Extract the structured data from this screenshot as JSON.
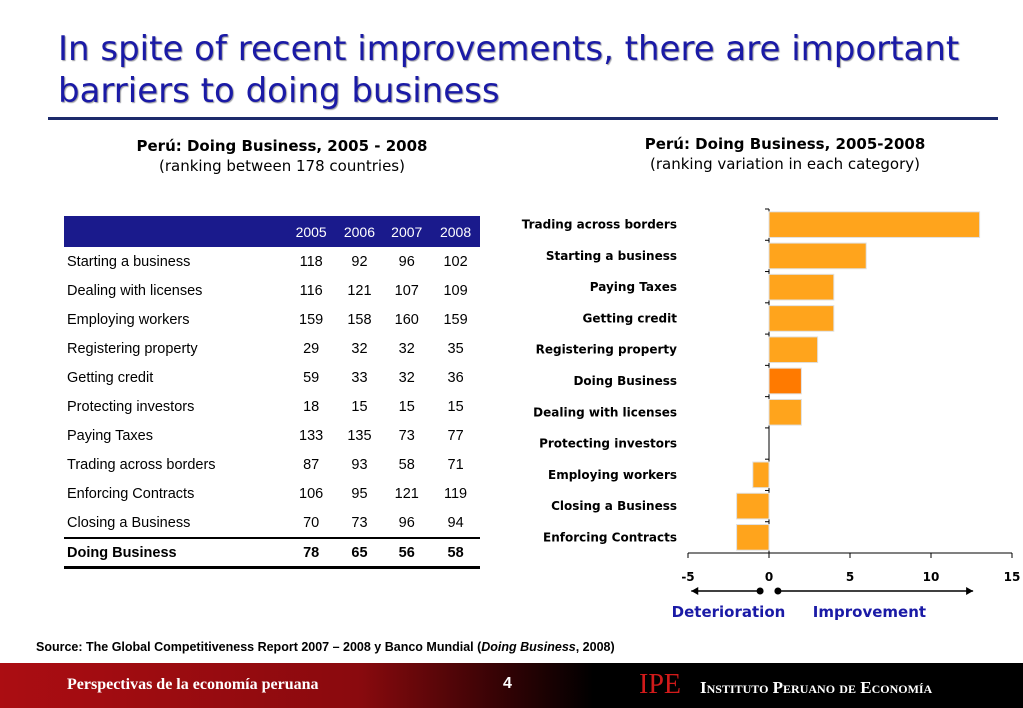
{
  "title": "In spite of recent improvements, there are important barriers to doing business",
  "left_caption": {
    "bold": "Perú: Doing Business, 2005 - 2008",
    "sub": "(ranking between 178 countries)"
  },
  "right_caption": {
    "bold": "Perú: Doing Business, 2005-2008",
    "sub": "(ranking variation in each category)"
  },
  "table": {
    "header": [
      "",
      "2005",
      "2006",
      "2007",
      "2008"
    ],
    "rows": [
      [
        "Starting a business",
        "118",
        "92",
        "96",
        "102"
      ],
      [
        "Dealing with licenses",
        "116",
        "121",
        "107",
        "109"
      ],
      [
        "Employing workers",
        "159",
        "158",
        "160",
        "159"
      ],
      [
        "Registering property",
        "29",
        "32",
        "32",
        "35"
      ],
      [
        "Getting credit",
        "59",
        "33",
        "32",
        "36"
      ],
      [
        "Protecting investors",
        "18",
        "15",
        "15",
        "15"
      ],
      [
        "Paying Taxes",
        "133",
        "135",
        "73",
        "77"
      ],
      [
        "Trading across borders",
        "87",
        "93",
        "58",
        "71"
      ],
      [
        "Enforcing Contracts",
        "106",
        "95",
        "121",
        "119"
      ],
      [
        "Closing a Business",
        "70",
        "73",
        "96",
        "94"
      ]
    ],
    "total": [
      "Doing Business",
      "78",
      "65",
      "56",
      "58"
    ]
  },
  "chart_data": {
    "type": "bar",
    "orientation": "horizontal",
    "categories": [
      "Trading across borders",
      "Starting a business",
      "Paying Taxes",
      "Getting credit",
      "Registering property",
      "Doing Business",
      "Dealing with licenses",
      "Protecting investors",
      "Employing workers",
      "Closing a Business",
      "Enforcing Contracts"
    ],
    "values": [
      13,
      6,
      4,
      4,
      3,
      2,
      2,
      0,
      -1,
      -2,
      -2
    ],
    "highlight": "Doing Business",
    "xlim": [
      -5,
      15
    ],
    "xticks": [
      "-5",
      "0",
      "5",
      "10",
      "15"
    ],
    "grid": false,
    "colors": {
      "bar": "#ffa41c",
      "highlight": "#ff7a00",
      "bar_edge": "#e0e0e0"
    },
    "annotations": {
      "left": "Deterioration",
      "right": "Improvement",
      "color": "#1a1aa6"
    }
  },
  "source": {
    "prefix": "Source: The Global Competitiveness Report 2007 – 2008 y Banco Mundial (",
    "italic": "Doing Business",
    "suffix": ", 2008)"
  },
  "footer": {
    "left": "Perspectivas de la economía peruana",
    "page": "4",
    "logo": "IPE",
    "institute": "Instituto Peruano de Economía"
  }
}
